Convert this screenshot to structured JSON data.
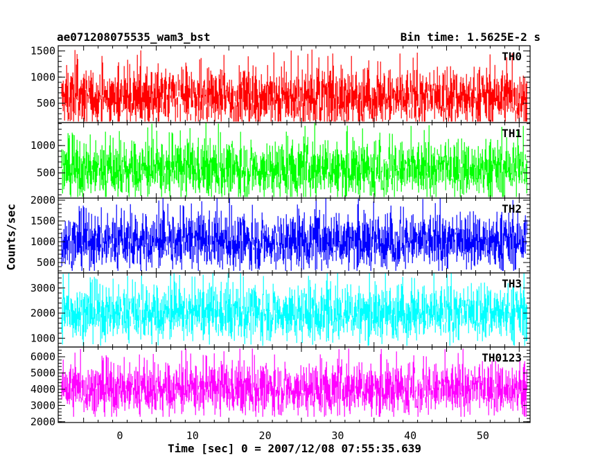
{
  "header": {
    "left_title": "ae071208075535_wam3_bst",
    "right_title": "Bin time: 1.5625E-2 s"
  },
  "chart_data": {
    "type": "line",
    "xlabel": "Time [sec] 0 = 2007/12/08 07:55:35.639",
    "ylabel": "Counts/sec",
    "xlim": [
      -8.5,
      56.5
    ],
    "data_x_range": [
      -8,
      56
    ],
    "bin_time_s": 0.015625,
    "x_ticks": [
      0,
      10,
      20,
      30,
      40,
      50
    ],
    "panels": [
      {
        "name": "TH0",
        "color": "#ff0000",
        "ylim": [
          130,
          1600
        ],
        "yticks": [
          500,
          1000,
          1500
        ],
        "mean": 600,
        "min_val": 150,
        "max_val": 1600
      },
      {
        "name": "TH1",
        "color": "#00ff00",
        "ylim": [
          40,
          1420
        ],
        "yticks": [
          500,
          1000
        ],
        "mean": 560,
        "min_val": 60,
        "max_val": 1420
      },
      {
        "name": "TH2",
        "color": "#0000ff",
        "ylim": [
          250,
          2050
        ],
        "yticks": [
          500,
          1000,
          1500,
          2000
        ],
        "mean": 1000,
        "min_val": 300,
        "max_val": 2050
      },
      {
        "name": "TH3",
        "color": "#00ffff",
        "ylim": [
          650,
          3600
        ],
        "yticks": [
          1000,
          2000,
          3000
        ],
        "mean": 2000,
        "min_val": 700,
        "max_val": 3600
      },
      {
        "name": "TH0123",
        "color": "#ff00ff",
        "ylim": [
          1950,
          6600
        ],
        "yticks": [
          2000,
          3000,
          4000,
          5000,
          6000
        ],
        "mean": 4000,
        "min_val": 2300,
        "max_val": 6500
      }
    ]
  }
}
